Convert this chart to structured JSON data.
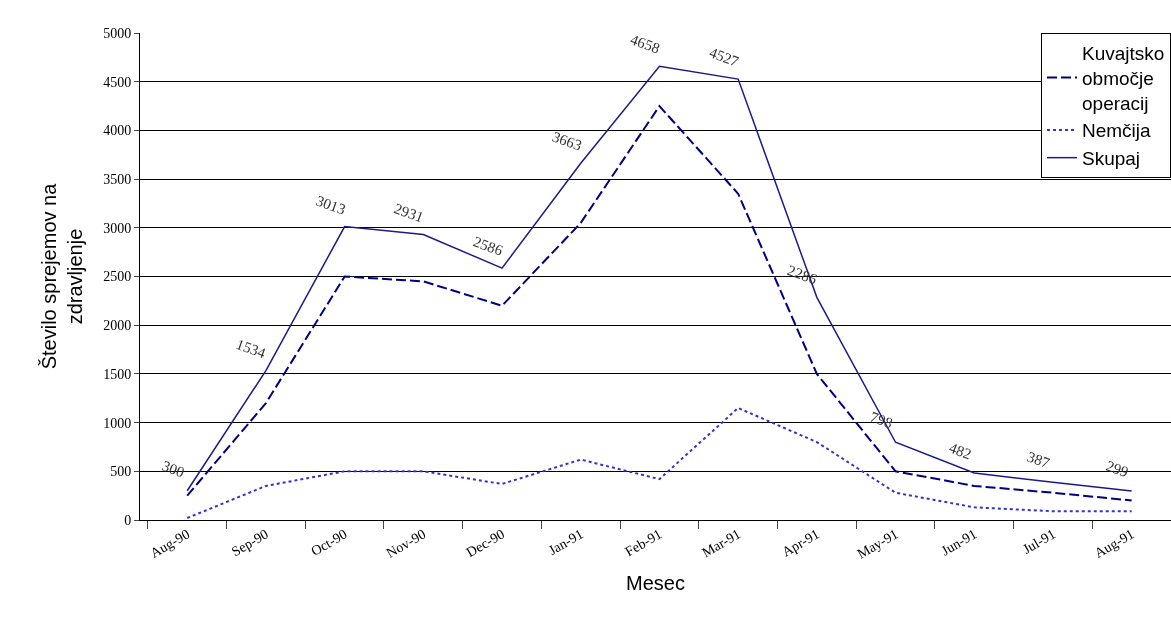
{
  "chart_data": {
    "type": "line",
    "xlabel": "Mesec",
    "ylabel": "Število sprejemov na zdravljenje",
    "categories": [
      "Aug-90",
      "Sep-90",
      "Oct-90",
      "Nov-90",
      "Dec-90",
      "Jan-91",
      "Feb-91",
      "Mar-91",
      "Apr-91",
      "May-91",
      "Jun-91",
      "Jul-91",
      "Aug-91"
    ],
    "series": [
      {
        "name": "Kuvajtsko območje operacij",
        "color": "#000080",
        "line_style": "dashed",
        "values": [
          250,
          1200,
          2500,
          2450,
          2200,
          3050,
          4250,
          3350,
          1500,
          500,
          350,
          280,
          200
        ]
      },
      {
        "name": "Nemčija",
        "color": "#3333cc",
        "line_style": "dotted",
        "values": [
          20,
          350,
          500,
          500,
          370,
          620,
          420,
          1150,
          800,
          280,
          130,
          90,
          90
        ]
      },
      {
        "name": "Skupaj",
        "color": "#1a1a8c",
        "line_style": "solid",
        "values": [
          300,
          1534,
          3013,
          2931,
          2586,
          3663,
          4658,
          4527,
          2286,
          798,
          482,
          387,
          299
        ],
        "value_labels": [
          "300",
          "1534",
          "3013",
          "2931",
          "2586",
          "3663",
          "4658",
          "4527",
          "2286",
          "798",
          "482",
          "387",
          "299"
        ]
      }
    ],
    "ylim": [
      0,
      5000
    ],
    "yticks": [
      0,
      500,
      1000,
      1500,
      2000,
      2500,
      3000,
      3500,
      4000,
      4500,
      5000
    ],
    "grid": "y",
    "legend": "top right",
    "marker": "none"
  }
}
